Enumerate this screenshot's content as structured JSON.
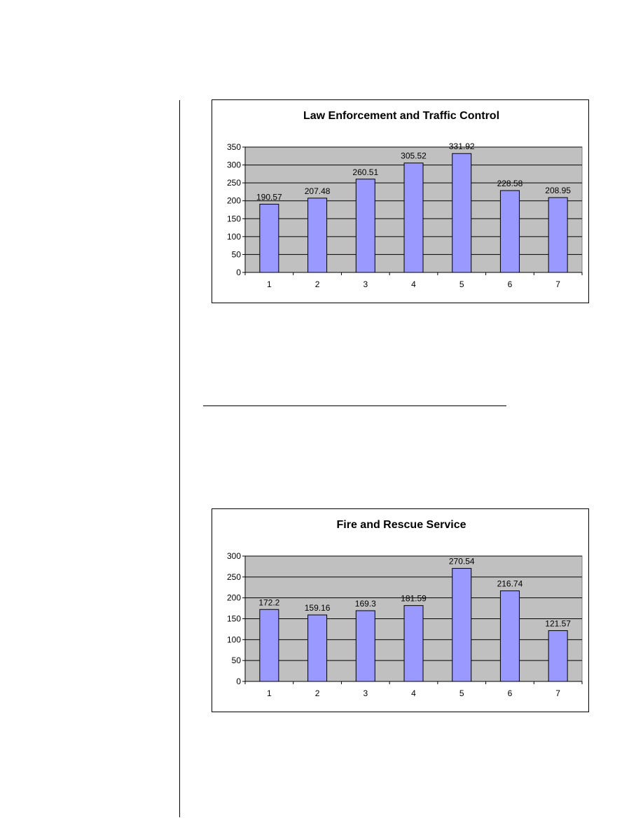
{
  "colors": {
    "bar_fill": "#9999ff",
    "plot_bg": "#c0c0c0",
    "line": "#000000"
  },
  "chart_data": [
    {
      "type": "bar",
      "title": "Law Enforcement and Traffic Control",
      "categories": [
        "1",
        "2",
        "3",
        "4",
        "5",
        "6",
        "7"
      ],
      "values": [
        190.57,
        207.48,
        260.51,
        305.52,
        331.92,
        228.58,
        208.95
      ],
      "data_labels": [
        "190.57",
        "207.48",
        "260.51",
        "305.52",
        "331.92",
        "228.58",
        "208.95"
      ],
      "y_ticks": [
        "0",
        "50",
        "100",
        "150",
        "200",
        "250",
        "300",
        "350"
      ],
      "ylim": [
        0,
        350
      ],
      "grid": true,
      "legend": "none"
    },
    {
      "type": "bar",
      "title": "Fire and Rescue Service",
      "categories": [
        "1",
        "2",
        "3",
        "4",
        "5",
        "6",
        "7"
      ],
      "values": [
        172.2,
        159.16,
        169.3,
        181.59,
        270.54,
        216.74,
        121.57
      ],
      "data_labels": [
        "172.2",
        "159.16",
        "169.3",
        "181.59",
        "270.54",
        "216.74",
        "121.57"
      ],
      "y_ticks": [
        "0",
        "50",
        "100",
        "150",
        "200",
        "250",
        "300"
      ],
      "ylim": [
        0,
        300
      ],
      "grid": true,
      "legend": "none"
    }
  ]
}
